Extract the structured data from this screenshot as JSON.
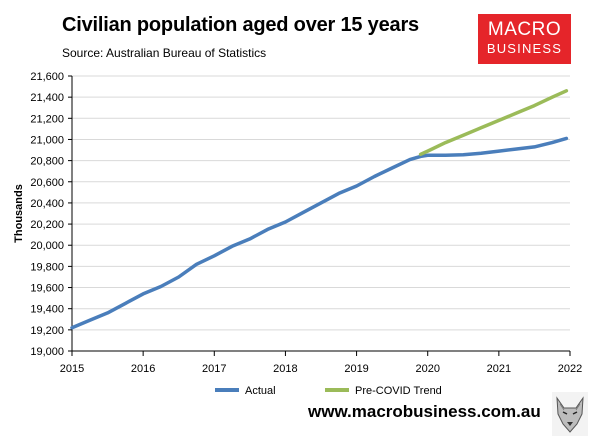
{
  "header": {
    "title": "Civilian population aged over 15 years",
    "subtitle": "Source: Australian Bureau of Statistics",
    "logo_line1": "MACRO",
    "logo_line2": "BUSINESS"
  },
  "footer": {
    "website": "www.macrobusiness.com.au"
  },
  "colors": {
    "actual": "#4a7ebb",
    "trend": "#9bbb59",
    "logo_bg": "#e5252a"
  },
  "chart_data": {
    "type": "line",
    "title": "Civilian population aged over 15 years",
    "subtitle": "Source: Australian Bureau of Statistics",
    "xlabel": "",
    "ylabel": "Thousands",
    "xlim": [
      2015,
      2022
    ],
    "ylim": [
      19000,
      21600
    ],
    "x_ticks": [
      "2015",
      "2016",
      "2017",
      "2018",
      "2019",
      "2020",
      "2021",
      "2022"
    ],
    "y_ticks": [
      "19,000",
      "19,200",
      "19,400",
      "19,600",
      "19,800",
      "20,000",
      "20,200",
      "20,400",
      "20,600",
      "20,800",
      "21,000",
      "21,200",
      "21,400",
      "21,600"
    ],
    "grid": {
      "horizontal": true,
      "vertical": false
    },
    "legend_position": "bottom",
    "series": [
      {
        "name": "Actual",
        "color": "#4a7ebb",
        "x": [
          2015.0,
          2015.25,
          2015.5,
          2015.75,
          2016.0,
          2016.25,
          2016.5,
          2016.75,
          2017.0,
          2017.25,
          2017.5,
          2017.75,
          2018.0,
          2018.25,
          2018.5,
          2018.75,
          2019.0,
          2019.25,
          2019.5,
          2019.75,
          2019.9,
          2020.0,
          2020.25,
          2020.5,
          2020.75,
          2021.0,
          2021.25,
          2021.5,
          2021.75,
          2021.95
        ],
        "values": [
          19220,
          19290,
          19360,
          19450,
          19540,
          19610,
          19700,
          19820,
          19900,
          19990,
          20060,
          20150,
          20220,
          20310,
          20400,
          20490,
          20560,
          20650,
          20730,
          20810,
          20840,
          20850,
          20850,
          20855,
          20870,
          20890,
          20910,
          20930,
          20970,
          21010
        ]
      },
      {
        "name": "Pre-COVID Trend",
        "color": "#9bbb59",
        "x": [
          2019.9,
          2020.0,
          2020.25,
          2020.5,
          2020.75,
          2021.0,
          2021.25,
          2021.5,
          2021.75,
          2021.95
        ],
        "values": [
          20860,
          20890,
          20970,
          21040,
          21110,
          21180,
          21250,
          21320,
          21400,
          21460
        ]
      }
    ]
  }
}
